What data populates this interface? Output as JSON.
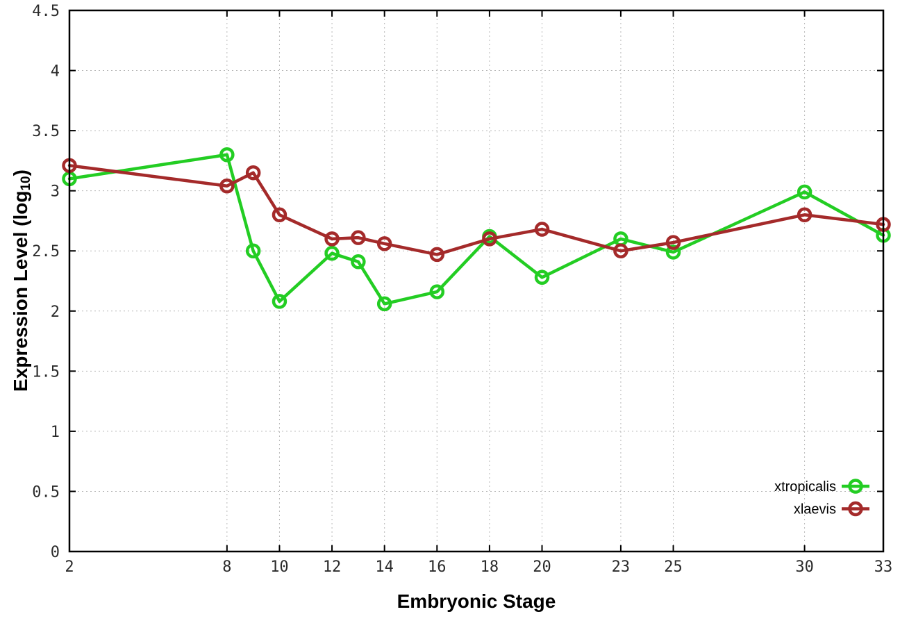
{
  "chart_data": {
    "type": "line",
    "title": "",
    "xlabel": "Embryonic Stage",
    "ylabel": "Expression Level (log10)",
    "ylabel_parts": {
      "main": "Expression Level (log",
      "sub": "10",
      "end": ")"
    },
    "x": [
      2,
      8,
      9,
      10,
      12,
      13,
      14,
      16,
      18,
      20,
      23,
      25,
      30,
      33
    ],
    "xticks": [
      2,
      8,
      10,
      12,
      14,
      16,
      18,
      20,
      23,
      25,
      30,
      33
    ],
    "yticks": [
      0,
      0.5,
      1,
      1.5,
      2,
      2.5,
      3,
      3.5,
      4,
      4.5
    ],
    "xlim": [
      2,
      33
    ],
    "ylim": [
      0,
      4.5
    ],
    "grid": true,
    "legend_position": "bottom-right",
    "series": [
      {
        "name": "xtropicalis",
        "color": "#23cd23",
        "values": [
          3.1,
          3.3,
          2.5,
          2.08,
          2.48,
          2.41,
          2.06,
          2.16,
          2.62,
          2.28,
          2.6,
          2.49,
          2.99,
          2.63
        ]
      },
      {
        "name": "xlaevis",
        "color": "#a42a2a",
        "values": [
          3.21,
          3.04,
          3.15,
          2.8,
          2.6,
          2.61,
          2.56,
          2.47,
          2.6,
          2.68,
          2.5,
          2.57,
          2.8,
          2.72
        ]
      }
    ]
  },
  "style": {
    "grid_color": "#b8b8b8",
    "border_color": "#000000",
    "tick_label_color": "#2b2b2b",
    "background": "#ffffff"
  }
}
